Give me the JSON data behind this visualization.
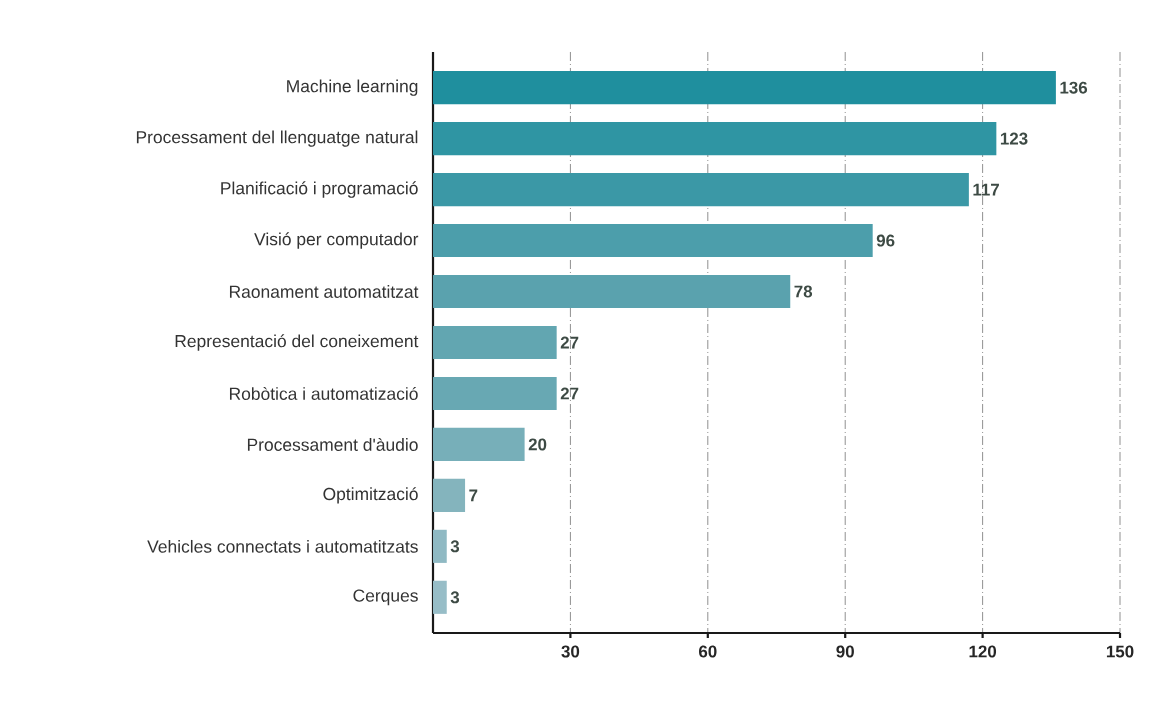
{
  "chart_data": {
    "type": "bar",
    "orientation": "horizontal",
    "categories": [
      "Machine learning",
      "Processament del llenguatge natural",
      "Planificació i programació",
      "Visió per computador",
      "Raonament automatitzat",
      "Representació del coneixement",
      "Robòtica i automatizació",
      "Processament d'àudio",
      "Optimització",
      "Vehicles connectats i automatitzats",
      "Cerques"
    ],
    "values": [
      136,
      123,
      117,
      96,
      78,
      27,
      27,
      20,
      7,
      3,
      3
    ],
    "colors": [
      "#1f8f9e",
      "#2f95a3",
      "#3b98a6",
      "#4c9eab",
      "#5aa2ae",
      "#62a6b1",
      "#68a8b3",
      "#77afb9",
      "#84b4bd",
      "#8fb9c3",
      "#97bdc7"
    ],
    "xlim": [
      0,
      150
    ],
    "xticks": [
      30,
      60,
      90,
      120,
      150
    ],
    "grid": "x",
    "data_labels": true
  }
}
